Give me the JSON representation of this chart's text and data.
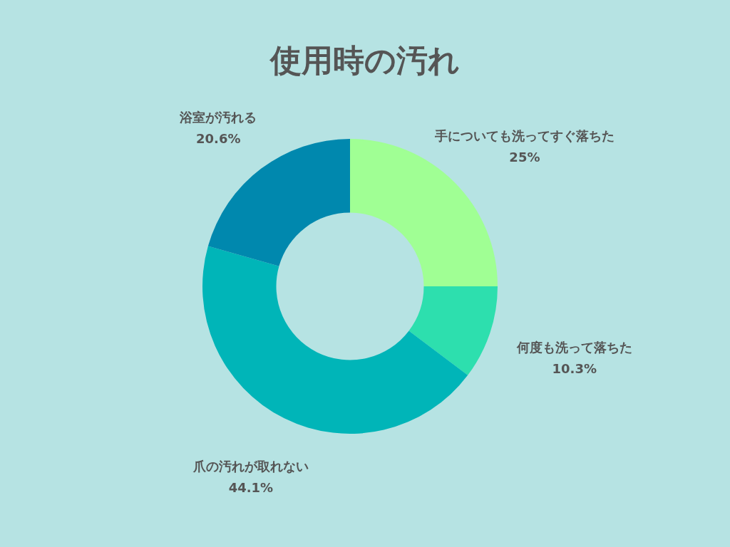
{
  "chart_data": {
    "type": "donut",
    "title": "使用時の汚れ",
    "categories": [
      "手についても洗ってすぐ落ちた",
      "何度も洗って落ちた",
      "爪の汚れが取れない",
      "浴室が汚れる"
    ],
    "values": [
      25,
      10.3,
      44.1,
      20.6
    ],
    "colors": [
      "#a0ff94",
      "#2ddfae",
      "#00b5b8",
      "#0088ae"
    ],
    "value_labels": [
      "25%",
      "10.3%",
      "44.1%",
      "20.6%"
    ]
  }
}
